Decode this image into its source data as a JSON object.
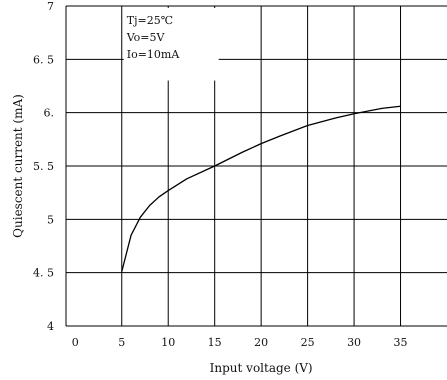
{
  "chart_data": {
    "type": "line",
    "xlabel": "Input voltage (V)",
    "ylabel": "Quiescent current (mA)",
    "xlim": [
      -1,
      40
    ],
    "ylim": [
      4,
      7
    ],
    "x_ticks": [
      0,
      5,
      10,
      15,
      20,
      25,
      30,
      35
    ],
    "x_tick_labels": [
      "0",
      "5",
      "10",
      "15",
      "20",
      "25",
      "30",
      "35"
    ],
    "y_ticks": [
      4,
      4.5,
      5,
      5.5,
      6,
      6.5,
      7
    ],
    "y_tick_labels": [
      "4",
      "4. 5",
      "5",
      "5. 5",
      "6.",
      "6. 5",
      "7"
    ],
    "grid": true,
    "annotations": [
      "Tj=25℃",
      "Vo=5V",
      "Io=10mA"
    ],
    "series": [
      {
        "x": [
          5,
          6,
          7,
          8,
          9,
          10,
          12,
          15,
          18,
          20,
          22,
          25,
          28,
          30,
          33,
          35
        ],
        "values": [
          4.51,
          4.85,
          5.02,
          5.13,
          5.21,
          5.27,
          5.38,
          5.5,
          5.63,
          5.71,
          5.78,
          5.88,
          5.95,
          5.99,
          6.04,
          6.06
        ]
      }
    ],
    "colors": {
      "line": "#000000",
      "grid": "#000000",
      "background": "#ffffff"
    }
  }
}
